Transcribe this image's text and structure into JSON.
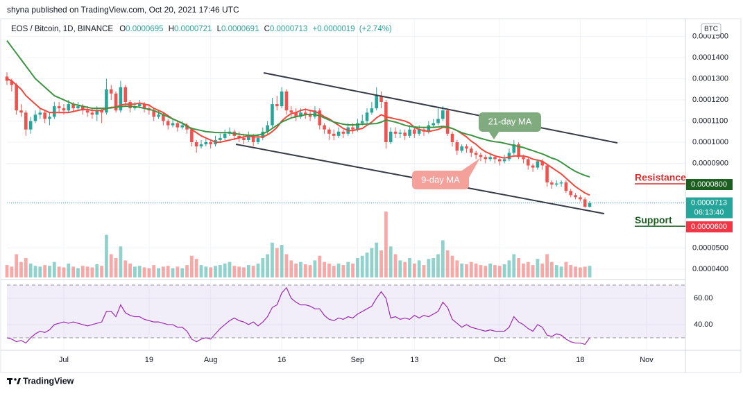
{
  "header": {
    "attribution": "shyna published on TradingView.com, Oct 20, 2021 17:46 UTC",
    "symbol": "EOS / Bitcoin, 1D, BINANCE",
    "ohlc": [
      {
        "key": "O",
        "value": "0.0000695"
      },
      {
        "key": "H",
        "value": "0.0000721"
      },
      {
        "key": "L",
        "value": "0.0000691"
      },
      {
        "key": "C",
        "value": "0.0000713"
      }
    ],
    "change": "+0.0000019",
    "change_pct": "(+2.74%)"
  },
  "chart_data": {
    "type": "candlestick",
    "currency": "BTC",
    "grid": true,
    "up_color": "#26a69a",
    "down_color": "#ef5350",
    "xlim": [
      0,
      143.2
    ],
    "xticks": [
      {
        "value": 12,
        "label": "Jul"
      },
      {
        "value": 30,
        "label": "19"
      },
      {
        "value": 43,
        "label": "Aug"
      },
      {
        "value": 58,
        "label": "16"
      },
      {
        "value": 74,
        "label": "Sep"
      },
      {
        "value": 86,
        "label": "13"
      },
      {
        "value": 104,
        "label": "Oct"
      },
      {
        "value": 121,
        "label": "18"
      },
      {
        "value": 135,
        "label": "Nov"
      }
    ],
    "ylim": [
      3.61e-05,
      0.000158
    ],
    "yticks": [
      {
        "value": 0.00015,
        "label": "0.0001500"
      },
      {
        "value": 0.00014,
        "label": "0.0001400"
      },
      {
        "value": 0.00013,
        "label": "0.0001300"
      },
      {
        "value": 0.00012,
        "label": "0.0001200"
      },
      {
        "value": 0.00011,
        "label": "0.0001100"
      },
      {
        "value": 0.0001,
        "label": "0.0001000"
      },
      {
        "value": 9e-05,
        "label": "0.0000900"
      },
      {
        "value": 5e-05,
        "label": "0.0000500"
      },
      {
        "value": 4e-05,
        "label": "0.0000400"
      }
    ],
    "open": [
      0.000131,
      0.000129,
      0.000127,
      0.000115,
      0.000114,
      0.000106,
      0.00011,
      0.000113,
      0.000114,
      0.000111,
      0.000112,
      0.000117,
      0.000116,
      0.000115,
      0.000118,
      0.000116,
      0.000117,
      0.000115,
      0.000114,
      0.000113,
      0.000115,
      0.000114,
      0.000125,
      0.000123,
      0.000115,
      0.000126,
      0.000119,
      0.000116,
      0.000117,
      0.000118,
      0.000116,
      0.000115,
      0.000112,
      0.000113,
      0.00011,
      0.000108,
      0.000109,
      0.000107,
      0.000108,
      0.000106,
      0.0001,
      9.8e-05,
      9.9e-05,
      0.0001,
      9.9e-05,
      0.000101,
      0.000102,
      0.000104,
      0.000105,
      0.000103,
      0.000102,
      0.000101,
      0.000103,
      0.0001,
      0.000102,
      0.000105,
      0.000108,
      0.000118,
      0.000117,
      0.000124,
      0.000115,
      0.000114,
      0.000112,
      0.000114,
      0.000113,
      0.000112,
      0.000115,
      0.000108,
      0.000106,
      0.000104,
      0.000103,
      0.000105,
      0.000104,
      0.000107,
      0.000106,
      0.000109,
      0.00011,
      0.000114,
      0.000116,
      0.000122,
      0.000119,
      0.0001,
      0.000105,
      0.000104,
      0.0001045,
      0.000103,
      0.000106,
      0.000104,
      0.000106,
      0.000105,
      0.000108,
      0.000109,
      0.000111,
      0.000115,
      0.000104,
      0.0001,
      9.6e-05,
      9.8e-05,
      9.7e-05,
      9.5e-05,
      9.4e-05,
      9.3e-05,
      9.2e-05,
      9.3e-05,
      9.2e-05,
      9.1e-05,
      9.2e-05,
      9.5e-05,
      9.9e-05,
      9.3e-05,
      9.2e-05,
      8.9e-05,
      8.8e-05,
      9.1e-05,
      8.9e-05,
      8.1e-05,
      8e-05,
      8.05e-05,
      8.1e-05,
      7.7e-05,
      7.5e-05,
      7.4e-05,
      7.3e-05,
      6.95e-05
    ],
    "high": [
      0.000133,
      0.00013,
      0.000128,
      0.000118,
      0.000115,
      0.000112,
      0.000115,
      0.000116,
      0.000115,
      0.000114,
      0.000119,
      0.000119,
      0.000118,
      0.00012,
      0.000119,
      0.000119,
      0.000118,
      0.000117,
      0.000116,
      0.000117,
      0.000116,
      0.00013,
      0.000127,
      0.000124,
      0.000129,
      0.000127,
      0.00012,
      0.000119,
      0.00012,
      0.000119,
      0.000118,
      0.000116,
      0.000115,
      0.000114,
      0.000111,
      0.000111,
      0.00011,
      0.00011,
      0.000109,
      0.000107,
      0.000101,
      0.000101,
      0.000102,
      0.000101,
      0.000103,
      0.000104,
      0.000106,
      0.000107,
      0.000106,
      0.000105,
      0.000104,
      0.000105,
      0.000104,
      0.000104,
      0.000107,
      0.00011,
      0.000121,
      0.000122,
      0.000126,
      0.000125,
      0.000117,
      0.000116,
      0.000116,
      0.000116,
      0.000115,
      0.000117,
      0.000116,
      0.000109,
      0.000107,
      0.000106,
      0.000107,
      0.000106,
      0.000109,
      0.000109,
      0.000111,
      0.000113,
      0.000116,
      0.000119,
      0.000126,
      0.000124,
      0.00012,
      0.000107,
      0.000107,
      0.000106,
      0.000106,
      0.000108,
      0.000107,
      0.000108,
      0.000107,
      0.00011,
      0.000111,
      0.000116,
      0.000117,
      0.000116,
      0.000105,
      0.000101,
      9.9e-05,
      9.9e-05,
      9.8e-05,
      9.6e-05,
      9.5e-05,
      9.4e-05,
      9.5e-05,
      9.4e-05,
      9.3e-05,
      9.4e-05,
      9.7e-05,
      0.000101,
      0.0001,
      9.4e-05,
      9.3e-05,
      9e-05,
      9.2e-05,
      9.2e-05,
      9e-05,
      8.2e-05,
      8.2e-05,
      8.2e-05,
      8.2e-05,
      7.8e-05,
      7.6e-05,
      7.5e-05,
      7.4e-05,
      7.21e-05
    ],
    "low": [
      0.000127,
      0.000124,
      0.000113,
      0.000112,
      0.000103,
      0.000104,
      0.000109,
      0.000111,
      0.000109,
      0.000108,
      0.000111,
      0.000114,
      0.000113,
      0.000114,
      0.000114,
      0.000115,
      0.000113,
      0.000112,
      0.000111,
      0.00011,
      0.000109,
      0.000113,
      0.00012,
      0.000114,
      0.000114,
      0.000117,
      0.000114,
      0.000115,
      0.000116,
      0.000114,
      0.000113,
      0.00011,
      0.000111,
      0.000108,
      0.000106,
      0.000107,
      0.000105,
      0.000106,
      0.000104,
      9.8e-05,
      9.5e-05,
      9.7e-05,
      9.8e-05,
      9.7e-05,
      9.8e-05,
      0.0001,
      0.000101,
      0.000103,
      0.000101,
      0.0001,
      9.9e-05,
      0.0001,
      9.8e-05,
      9.9e-05,
      0.000101,
      0.000104,
      0.000107,
      0.000115,
      0.000116,
      0.000113,
      0.000112,
      0.00011,
      0.000111,
      0.000111,
      0.00011,
      0.000111,
      0.000106,
      0.000104,
      0.000101,
      0.000101,
      0.000102,
      0.000102,
      0.000103,
      0.000104,
      0.000105,
      0.000108,
      0.000109,
      0.000113,
      0.000115,
      0.000116,
      9.7e-05,
      9.9e-05,
      0.000102,
      0.000102,
      0.000101,
      0.000102,
      0.000102,
      0.000103,
      0.000103,
      0.000104,
      0.000107,
      0.000108,
      0.00011,
      0.000103,
      9.8e-05,
      9.4e-05,
      9.5e-05,
      9.5e-05,
      9.3e-05,
      9.2e-05,
      9.1e-05,
      9e-05,
      9.1e-05,
      9e-05,
      8.9e-05,
      9e-05,
      9.1e-05,
      9.4e-05,
      9.2e-05,
      9e-05,
      8.7e-05,
      8.6e-05,
      8.7e-05,
      8.7e-05,
      7.9e-05,
      7.8e-05,
      7.9e-05,
      7.9e-05,
      7.6e-05,
      7.4e-05,
      7.3e-05,
      7.2e-05,
      6.9e-05,
      6.91e-05
    ],
    "close": [
      0.000129,
      0.000127,
      0.000115,
      0.000114,
      0.000106,
      0.00011,
      0.000113,
      0.000114,
      0.000111,
      0.000112,
      0.000117,
      0.000116,
      0.000115,
      0.000118,
      0.000116,
      0.000117,
      0.000115,
      0.000114,
      0.000113,
      0.000115,
      0.000114,
      0.000125,
      0.000123,
      0.000115,
      0.000126,
      0.000119,
      0.000116,
      0.000117,
      0.000118,
      0.000116,
      0.000115,
      0.000112,
      0.000113,
      0.00011,
      0.000108,
      0.000109,
      0.000107,
      0.000108,
      0.000106,
      0.0001,
      9.8e-05,
      9.9e-05,
      0.0001,
      9.9e-05,
      0.000101,
      0.000102,
      0.000104,
      0.000105,
      0.000103,
      0.000102,
      0.000101,
      0.000103,
      0.0001,
      0.000102,
      0.000105,
      0.000108,
      0.000118,
      0.000117,
      0.000124,
      0.000115,
      0.000114,
      0.000112,
      0.000114,
      0.000113,
      0.000112,
      0.000115,
      0.000108,
      0.000106,
      0.000104,
      0.000103,
      0.000105,
      0.000104,
      0.000107,
      0.000106,
      0.000109,
      0.00011,
      0.000114,
      0.000116,
      0.000122,
      0.000119,
      0.0001,
      0.000105,
      0.000104,
      0.0001045,
      0.000103,
      0.000106,
      0.000104,
      0.000106,
      0.000105,
      0.000108,
      0.000109,
      0.000111,
      0.000115,
      0.000104,
      0.0001,
      9.6e-05,
      9.8e-05,
      9.7e-05,
      9.5e-05,
      9.4e-05,
      9.3e-05,
      9.2e-05,
      9.3e-05,
      9.2e-05,
      9.1e-05,
      9.2e-05,
      9.5e-05,
      9.9e-05,
      9.3e-05,
      9.2e-05,
      8.9e-05,
      8.8e-05,
      9.1e-05,
      8.9e-05,
      8.1e-05,
      8e-05,
      8.05e-05,
      8.1e-05,
      7.7e-05,
      7.5e-05,
      7.4e-05,
      7.3e-05,
      6.95e-05,
      7.13e-05
    ],
    "volume": [
      16,
      14,
      30,
      20,
      25,
      18,
      15,
      14,
      16,
      15,
      20,
      14,
      13,
      18,
      14,
      12,
      15,
      14,
      13,
      17,
      15,
      55,
      30,
      25,
      40,
      22,
      18,
      14,
      15,
      13,
      12,
      16,
      12,
      14,
      15,
      12,
      14,
      12,
      16,
      28,
      24,
      16,
      14,
      13,
      15,
      16,
      18,
      20,
      15,
      14,
      13,
      16,
      15,
      18,
      25,
      30,
      45,
      38,
      42,
      30,
      22,
      18,
      20,
      17,
      16,
      22,
      28,
      20,
      18,
      15,
      18,
      16,
      20,
      18,
      25,
      28,
      32,
      38,
      45,
      35,
      85,
      40,
      30,
      22,
      20,
      25,
      18,
      22,
      16,
      24,
      25,
      30,
      48,
      35,
      28,
      22,
      18,
      17,
      20,
      18,
      16,
      15,
      18,
      16,
      15,
      17,
      22,
      30,
      25,
      18,
      20,
      16,
      24,
      18,
      30,
      20,
      16,
      14,
      20,
      16,
      14,
      13,
      14,
      15
    ],
    "series": [
      {
        "name": "9-day MA",
        "color": "#f0473c",
        "values": [
          0.00013,
          0.000129,
          0.000127,
          0.000125,
          0.000122,
          0.00012,
          0.000118,
          0.000116,
          0.000115,
          0.000114,
          0.000114,
          0.000114,
          0.000114,
          0.000114,
          0.0001145,
          0.000115,
          0.0001155,
          0.0001155,
          0.000115,
          0.000115,
          0.000115,
          0.000116,
          0.0001165,
          0.0001165,
          0.0001175,
          0.000118,
          0.000118,
          0.000118,
          0.0001185,
          0.000118,
          0.0001175,
          0.000116,
          0.000115,
          0.000114,
          0.0001125,
          0.000111,
          0.00011,
          0.000109,
          0.000108,
          0.000106,
          0.0001045,
          0.000103,
          0.000102,
          0.000101,
          0.0001,
          0.0001,
          0.0001005,
          0.000101,
          0.0001015,
          0.000102,
          0.0001025,
          0.000103,
          0.0001025,
          0.0001025,
          0.0001025,
          0.0001035,
          0.000105,
          0.000107,
          0.00011,
          0.000112,
          0.0001135,
          0.000114,
          0.000115,
          0.0001155,
          0.000115,
          0.0001145,
          0.0001135,
          0.000112,
          0.000111,
          0.0001095,
          0.000108,
          0.0001065,
          0.0001055,
          0.0001055,
          0.000106,
          0.0001065,
          0.000108,
          0.0001095,
          0.0001115,
          0.000113,
          0.000112,
          0.0001115,
          0.000111,
          0.0001105,
          0.00011,
          0.000109,
          0.000107,
          0.000106,
          0.0001055,
          0.000105,
          0.0001055,
          0.000106,
          0.000107,
          0.000107,
          0.0001065,
          0.0001055,
          0.000104,
          0.0001025,
          0.0001005,
          9.9e-05,
          9.7e-05,
          9.55e-05,
          9.45e-05,
          9.35e-05,
          9.3e-05,
          9.25e-05,
          9.3e-05,
          9.35e-05,
          9.35e-05,
          9.35e-05,
          9.3e-05,
          9.2e-05,
          9.15e-05,
          9.1e-05,
          8.95e-05,
          8.8e-05,
          8.65e-05,
          8.5e-05,
          8.3e-05,
          8.1e-05,
          7.9e-05,
          7.75e-05,
          7.6e-05,
          7.5e-05
        ]
      },
      {
        "name": "21-day MA",
        "color": "#3d9440",
        "values": [
          0.000148,
          0.000145,
          0.000142,
          0.000139,
          0.000136,
          0.000133,
          0.00013,
          0.000128,
          0.000126,
          0.000124,
          0.000122,
          0.000121,
          0.00012,
          0.000119,
          0.000118,
          0.0001175,
          0.000117,
          0.0001165,
          0.000116,
          0.000116,
          0.000116,
          0.000116,
          0.0001162,
          0.0001165,
          0.0001168,
          0.000117,
          0.000117,
          0.0001168,
          0.0001165,
          0.000116,
          0.0001155,
          0.000115,
          0.000114,
          0.000113,
          0.000112,
          0.000111,
          0.00011,
          0.000109,
          0.0001075,
          0.0001065,
          0.000106,
          0.0001055,
          0.000105,
          0.0001048,
          0.0001046,
          0.0001045,
          0.0001045,
          0.0001045,
          0.000104,
          0.0001038,
          0.0001035,
          0.0001033,
          0.0001032,
          0.0001033,
          0.000104,
          0.000105,
          0.0001065,
          0.000108,
          0.0001095,
          0.0001105,
          0.0001115,
          0.000112,
          0.0001125,
          0.000113,
          0.0001132,
          0.000113,
          0.0001125,
          0.0001115,
          0.0001105,
          0.0001095,
          0.000109,
          0.0001085,
          0.0001082,
          0.0001082,
          0.0001083,
          0.0001085,
          0.0001086,
          0.0001087,
          0.0001088,
          0.0001095,
          0.0001105,
          0.00011,
          0.0001095,
          0.0001088,
          0.000108,
          0.0001075,
          0.0001072,
          0.000107,
          0.000107,
          0.000107,
          0.000107,
          0.0001072,
          0.0001075,
          0.0001072,
          0.0001065,
          0.0001055,
          0.0001045,
          0.0001038,
          0.0001033,
          0.0001025,
          0.0001018,
          0.0001012,
          0.0001006,
          0.0001002,
          0.0001,
          9.95e-05,
          9.9e-05,
          9.85e-05,
          9.8e-05,
          9.75e-05,
          9.67e-05,
          9.6e-05,
          9.52e-05,
          9.45e-05,
          9.35e-05,
          9.25e-05,
          9.18e-05,
          9.05e-05,
          8.9e-05,
          8.75e-05,
          8.62e-05,
          8.52e-05,
          8.43e-05,
          8.36e-05
        ]
      }
    ],
    "rsi": {
      "color": "#9c27b0",
      "ylim": [
        20.5,
        74.2
      ],
      "bands": [
        70,
        30
      ],
      "yticks": [
        {
          "value": 60,
          "label": "60.00"
        },
        {
          "value": 40,
          "label": "40.00"
        }
      ],
      "values": [
        30,
        29,
        27,
        28,
        26,
        30,
        33,
        35,
        34,
        36,
        40,
        41,
        42,
        41,
        42,
        41,
        40,
        39,
        40,
        41,
        42,
        50,
        50,
        46,
        55,
        49,
        47,
        46,
        46,
        44,
        43,
        42,
        42,
        41,
        40,
        40,
        38,
        38,
        35,
        29,
        27,
        29,
        30,
        29,
        33,
        37,
        40,
        43,
        45,
        43,
        42,
        40,
        42,
        39,
        42,
        46,
        53,
        55,
        64,
        68,
        60,
        57,
        55,
        55,
        54,
        52,
        52,
        47,
        44,
        43,
        45,
        44,
        46,
        45,
        48,
        50,
        52,
        54,
        60,
        65,
        60,
        45,
        46,
        44,
        45,
        44,
        47,
        45,
        47,
        46,
        48,
        50,
        57,
        53,
        44,
        41,
        38,
        40,
        38,
        37,
        36,
        35,
        36,
        35,
        35,
        35,
        38,
        46,
        42,
        40,
        37,
        35,
        40,
        38,
        32,
        31,
        33,
        32,
        29,
        27,
        26,
        26,
        25,
        30
      ]
    },
    "price_labels": [
      {
        "name": "Resistance",
        "name_color": "#d32f2f",
        "value": 8e-05,
        "label": "0.0000800",
        "color": "#1b5e20"
      },
      {
        "value": 7.13e-05,
        "label": "0.0000713",
        "countdown": "06:13:40",
        "color": "#26a69a"
      },
      {
        "name": "Support",
        "name_color": "#1b5e20",
        "value": 6e-05,
        "label": "0.0000600",
        "color": "#f23645"
      }
    ]
  },
  "footer": {
    "brand": "TradingView"
  }
}
